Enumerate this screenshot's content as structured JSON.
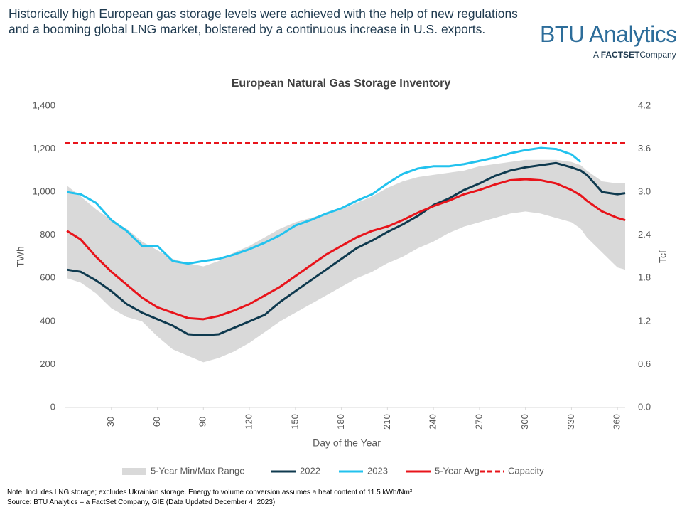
{
  "header": {
    "text": "Historically high European gas storage levels were achieved with the help of new regulations and a booming global LNG market, bolstered by a continuous increase in U.S. exports.",
    "logo": "BTU Analytics",
    "logo_sub_prefix": "A",
    "logo_sub_brand": "FACTSET",
    "logo_sub_suffix": "Company"
  },
  "chart_data": {
    "type": "line",
    "title": "European Natural Gas Storage Inventory",
    "xlabel": "Day of the Year",
    "ylabel": "TWh",
    "y2label": "Tcf",
    "x": [
      1,
      10,
      20,
      30,
      40,
      50,
      60,
      70,
      80,
      90,
      100,
      110,
      120,
      130,
      140,
      150,
      160,
      170,
      180,
      190,
      200,
      210,
      220,
      230,
      240,
      250,
      260,
      270,
      280,
      290,
      300,
      310,
      320,
      330,
      336,
      340,
      350,
      360,
      365
    ],
    "xlim": [
      0,
      365
    ],
    "xticks": [
      30,
      60,
      90,
      120,
      150,
      180,
      210,
      240,
      270,
      300,
      330,
      360
    ],
    "ylim": [
      0,
      1400
    ],
    "yticks": [
      0,
      200,
      400,
      600,
      800,
      {
        "value": 1000,
        "label": "1,000"
      },
      {
        "value": 1200,
        "label": "1,200"
      },
      {
        "value": 1400,
        "label": "1,400"
      }
    ],
    "y2lim": [
      0,
      4.2
    ],
    "y2ticks": [
      {
        "value": 0,
        "label": "0.0"
      },
      0.6,
      1.2,
      1.8,
      2.4,
      {
        "value": 3,
        "label": "3.0"
      },
      3.6,
      4.2
    ],
    "band": {
      "name": "5-Year Min/Max Range",
      "color": "#d9d9d9",
      "upper": [
        1030,
        980,
        920,
        870,
        830,
        770,
        730,
        690,
        670,
        655,
        680,
        720,
        750,
        790,
        830,
        860,
        880,
        900,
        920,
        950,
        980,
        1020,
        1050,
        1070,
        1080,
        1090,
        1100,
        1120,
        1130,
        1140,
        1150,
        1150,
        1150,
        1140,
        1125,
        1100,
        1050,
        1040,
        1040
      ],
      "lower": [
        600,
        580,
        530,
        460,
        420,
        400,
        330,
        270,
        240,
        210,
        230,
        260,
        300,
        350,
        400,
        440,
        480,
        520,
        560,
        600,
        630,
        670,
        700,
        740,
        770,
        810,
        840,
        860,
        880,
        900,
        910,
        900,
        880,
        860,
        830,
        790,
        720,
        650,
        640
      ]
    },
    "series": [
      {
        "name": "2022",
        "color": "#0f3a4f",
        "values": [
          640,
          630,
          590,
          540,
          480,
          440,
          410,
          380,
          340,
          335,
          340,
          370,
          400,
          430,
          490,
          540,
          590,
          640,
          690,
          740,
          775,
          815,
          850,
          890,
          940,
          970,
          1010,
          1040,
          1075,
          1100,
          1115,
          1125,
          1135,
          1115,
          1100,
          1080,
          1000,
          990,
          995
        ]
      },
      {
        "name": "2023",
        "color": "#22c2ee",
        "values": [
          1000,
          990,
          950,
          870,
          820,
          750,
          750,
          680,
          668,
          680,
          690,
          710,
          735,
          765,
          800,
          845,
          870,
          900,
          925,
          960,
          990,
          1040,
          1085,
          1110,
          1120,
          1120,
          1130,
          1145,
          1160,
          1180,
          1195,
          1205,
          1200,
          1175,
          1140,
          null,
          null,
          null,
          null
        ]
      },
      {
        "name": "5-Year Avg",
        "color": "#e8141b",
        "values": [
          820,
          780,
          700,
          630,
          570,
          510,
          465,
          440,
          415,
          410,
          425,
          450,
          480,
          520,
          560,
          610,
          660,
          710,
          750,
          790,
          820,
          840,
          870,
          905,
          935,
          960,
          990,
          1010,
          1035,
          1055,
          1060,
          1055,
          1040,
          1010,
          985,
          960,
          910,
          880,
          870
        ]
      }
    ],
    "capacity": {
      "name": "Capacity",
      "color": "#e8141b",
      "value": 1230
    }
  },
  "notes": [
    "Note: Includes LNG storage; excludes Ukrainian storage. Energy to volume conversion assumes a heat content of 11.5 kWh/Nm³",
    "Source: BTU Analytics – a FactSet Company, GIE (Data Updated December 4, 2023)"
  ]
}
